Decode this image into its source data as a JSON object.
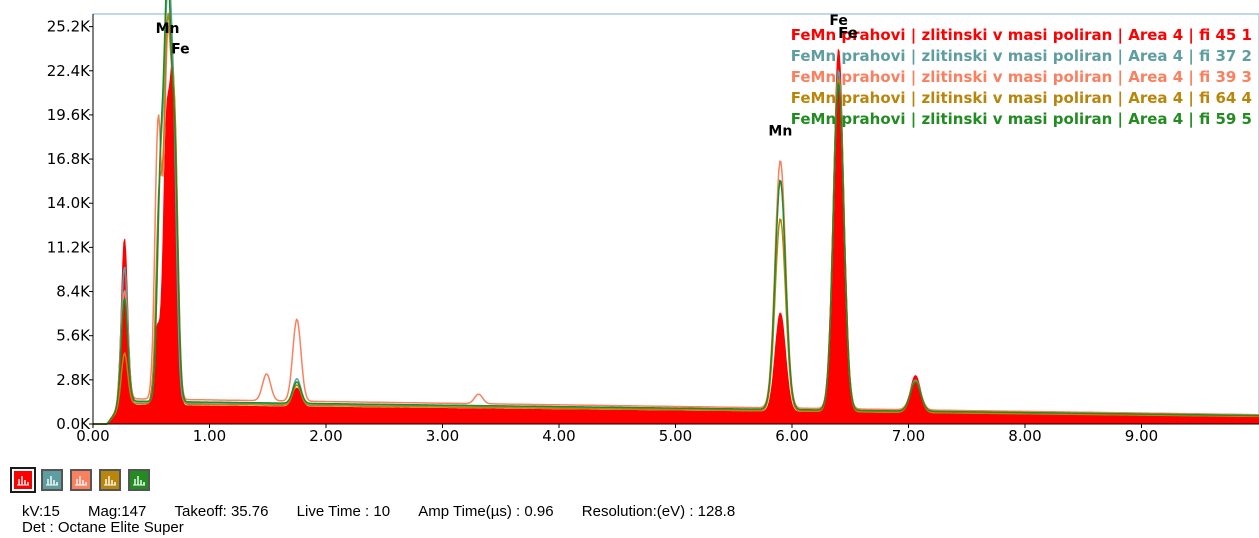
{
  "chart_data": {
    "type": "area",
    "xlim": [
      0,
      10
    ],
    "ylim": [
      0,
      26000
    ],
    "x_ticks": [
      "0.00",
      "1.00",
      "2.00",
      "3.00",
      "4.00",
      "5.00",
      "6.00",
      "7.00",
      "8.00",
      "9.00"
    ],
    "y_ticks": [
      "0.0K",
      "2.8K",
      "5.6K",
      "8.4K",
      "11.2K",
      "14.0K",
      "16.8K",
      "19.6K",
      "22.4K",
      "25.2K"
    ],
    "y_tick_values": [
      0,
      2800,
      5600,
      8400,
      11200,
      14000,
      16800,
      19600,
      22400,
      25200
    ],
    "x_tick_values": [
      0,
      1,
      2,
      3,
      4,
      5,
      6,
      7,
      8,
      9
    ],
    "grid": false,
    "legend_position": "top-right",
    "series": [
      {
        "name": "FeMn prahovi | zlitinski v masi poliran | Area 4 | fi 45 1",
        "color": "#ff0000",
        "peaks": [
          [
            0.27,
            11800
          ],
          [
            0.55,
            6000
          ],
          [
            0.63,
            17800
          ],
          [
            0.69,
            21000
          ],
          [
            1.75,
            2400
          ],
          [
            5.9,
            7500
          ],
          [
            6.4,
            24300
          ],
          [
            7.06,
            3600
          ]
        ],
        "baseline": 1200
      },
      {
        "name": "FeMn prahovi | zlitinski v masi poliran | Area 4 | fi 37 2",
        "color": "#5f9ea0",
        "peaks": [
          [
            0.27,
            10000
          ],
          [
            0.58,
            15000
          ],
          [
            0.64,
            23500
          ],
          [
            0.69,
            17500
          ],
          [
            1.75,
            3000
          ],
          [
            5.9,
            16000
          ],
          [
            6.4,
            23000
          ],
          [
            7.06,
            3400
          ]
        ],
        "baseline": 1400
      },
      {
        "name": "FeMn prahovi | zlitinski v masi poliran | Area 4 | fi 39 3",
        "color": "#fa8060",
        "peaks": [
          [
            0.27,
            8500
          ],
          [
            0.56,
            19300
          ],
          [
            0.64,
            23000
          ],
          [
            0.7,
            18500
          ],
          [
            1.49,
            3300
          ],
          [
            1.75,
            6800
          ],
          [
            3.31,
            2200
          ],
          [
            5.9,
            17300
          ],
          [
            6.4,
            22500
          ],
          [
            7.06,
            3400
          ]
        ],
        "baseline": 1600
      },
      {
        "name": "FeMn prahovi | zlitinski v masi poliran | Area 4 | fi 64 4",
        "color": "#b8860b",
        "peaks": [
          [
            0.27,
            4500
          ],
          [
            0.57,
            14500
          ],
          [
            0.64,
            23600
          ],
          [
            0.7,
            18500
          ],
          [
            1.75,
            2600
          ],
          [
            5.9,
            13500
          ],
          [
            6.4,
            22400
          ],
          [
            7.06,
            3300
          ]
        ],
        "baseline": 1300
      },
      {
        "name": "FeMn prahovi | zlitinski v masi poliran | Area 4 | fi 59 5",
        "color": "#228b22",
        "peaks": [
          [
            0.27,
            8000
          ],
          [
            0.58,
            15500
          ],
          [
            0.64,
            26000
          ],
          [
            0.7,
            17000
          ],
          [
            1.75,
            2800
          ],
          [
            5.9,
            16000
          ],
          [
            6.4,
            22200
          ],
          [
            7.06,
            3300
          ]
        ],
        "baseline": 1450
      }
    ],
    "annotations": [
      {
        "text": "Mn",
        "x": 0.64,
        "y": 24800
      },
      {
        "text": "Fe",
        "x": 0.75,
        "y": 23500
      },
      {
        "text": "Mn",
        "x": 5.9,
        "y": 18300
      },
      {
        "text": "Fe",
        "x": 6.4,
        "y": 25300
      }
    ]
  },
  "legend_label_prefix": "FeMn",
  "legend_overlap_text": "Fe",
  "toolbar": {
    "buttons": [
      {
        "name": "spectrum-1-toggle",
        "color": "#ff0000",
        "active": true
      },
      {
        "name": "spectrum-2-toggle",
        "color": "#5f9ea0",
        "active": false
      },
      {
        "name": "spectrum-3-toggle",
        "color": "#fa8060",
        "active": false
      },
      {
        "name": "spectrum-4-toggle",
        "color": "#b8860b",
        "active": false
      },
      {
        "name": "spectrum-5-toggle",
        "color": "#228b22",
        "active": false
      }
    ]
  },
  "info": {
    "kv": "kV:15",
    "mag": "Mag:147",
    "takeoff": "Takeoff: 35.76",
    "live_time": "Live Time : 10",
    "amp_time": "Amp Time(µs) : 0.96",
    "resolution": "Resolution:(eV) : 128.8",
    "detector": "Det : Octane Elite Super"
  }
}
